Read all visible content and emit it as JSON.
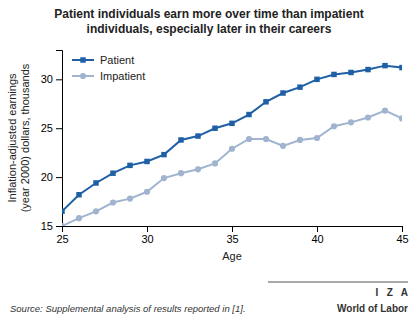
{
  "chart_data": {
    "type": "line",
    "title": "Patient individuals earn more over time than impatient\nindividuals, especially later in their careers",
    "xlabel": "Age",
    "ylabel": "Inflation-adjusted earnings\n(year 2000) dollars, thousands",
    "annotations": [
      "Source: Supplemental analysis of results reported in [1].",
      "I   Z   A",
      "World of Labor"
    ],
    "x": [
      25,
      26,
      27,
      28,
      29,
      30,
      31,
      32,
      33,
      34,
      35,
      36,
      37,
      38,
      39,
      40,
      41,
      42,
      43,
      44,
      45
    ],
    "series": [
      {
        "name": "Patient",
        "color": "#1F5FA6",
        "marker": "square",
        "values": [
          16.5,
          18.2,
          19.4,
          20.4,
          21.2,
          21.6,
          22.3,
          23.8,
          24.2,
          25.0,
          25.5,
          26.4,
          27.7,
          28.6,
          29.2,
          30.0,
          30.5,
          30.7,
          31.0,
          31.4,
          31.2
        ]
      },
      {
        "name": "Impatient",
        "color": "#A0B4D0",
        "marker": "circle",
        "values": [
          15.0,
          15.8,
          16.5,
          17.4,
          17.8,
          18.5,
          19.9,
          20.4,
          20.8,
          21.4,
          22.9,
          23.9,
          23.9,
          23.2,
          23.8,
          24.0,
          25.2,
          25.6,
          26.1,
          26.8,
          26.0
        ]
      }
    ],
    "xlim": [
      25,
      45
    ],
    "xticks": [
      25,
      30,
      35,
      40,
      45
    ],
    "ylim": [
      15,
      33
    ],
    "yticks": [
      15,
      20,
      25,
      30
    ],
    "grid": false,
    "legend": "upper left"
  }
}
